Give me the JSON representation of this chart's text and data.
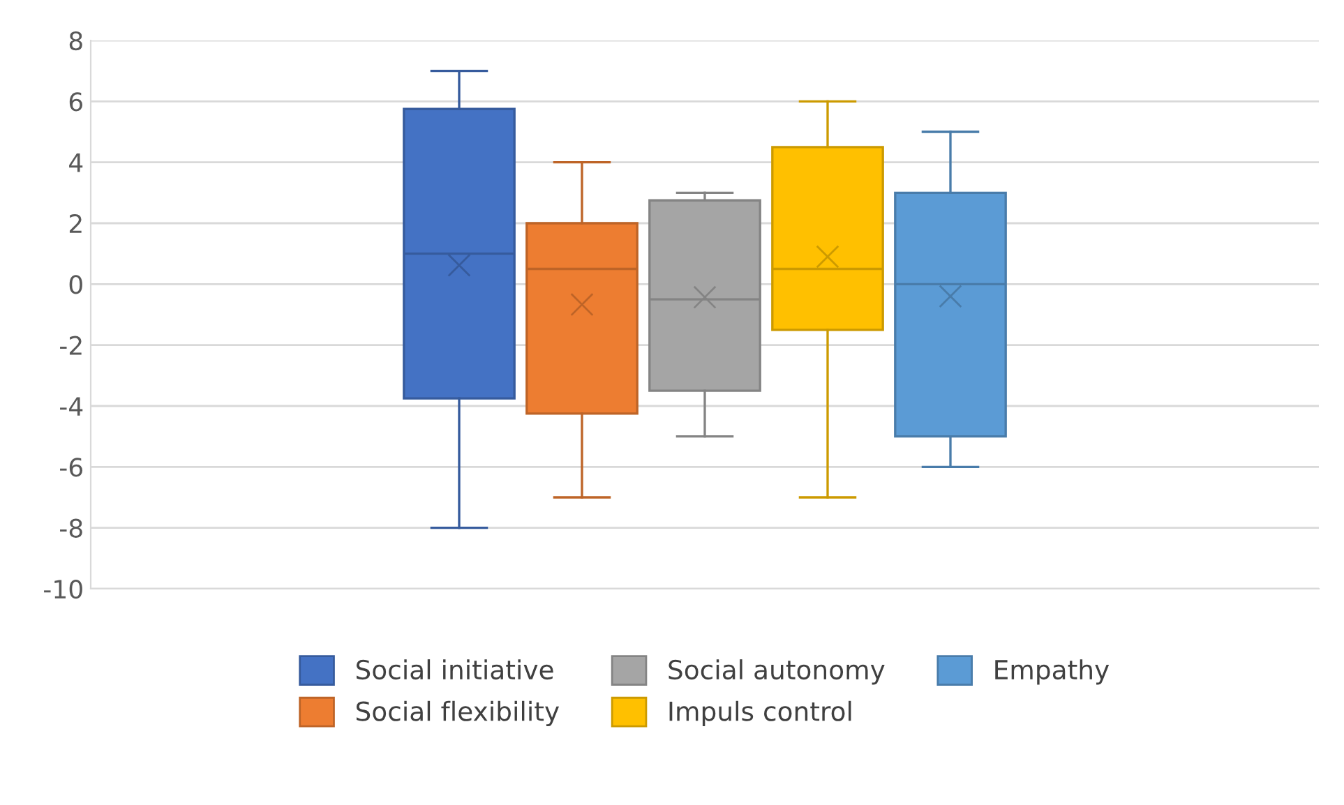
{
  "chart_data": {
    "type": "box",
    "categories": [
      null
    ],
    "series": [
      {
        "name": "Social initiative",
        "color": "#4472c4",
        "boxes": [
          {
            "low": -8,
            "q1": -3.75,
            "median": 1,
            "q3": 5.75,
            "high": 7,
            "mean": 0.62
          }
        ]
      },
      {
        "name": "Social flexibility",
        "color": "#ed7d31",
        "boxes": [
          {
            "low": -7,
            "q1": -4.25,
            "median": 0.5,
            "q3": 2,
            "high": 4,
            "mean": -0.67
          }
        ]
      },
      {
        "name": "Social autonomy",
        "color": "#a5a5a5",
        "boxes": [
          {
            "low": -5,
            "q1": -3.5,
            "median": -0.5,
            "q3": 2.75,
            "high": 3,
            "mean": -0.43
          }
        ]
      },
      {
        "name": "Impuls control",
        "color": "#ffc000",
        "boxes": [
          {
            "low": -7,
            "q1": -1.5,
            "median": 0.5,
            "q3": 4.5,
            "high": 6,
            "mean": 0.9
          }
        ]
      },
      {
        "name": "Empathy",
        "color": "#5b9bd5",
        "boxes": [
          {
            "low": -6,
            "q1": -5,
            "median": 0,
            "q3": 3,
            "high": 5,
            "mean": -0.4
          }
        ]
      }
    ],
    "ylim": [
      -10,
      8
    ],
    "yticks": [
      -10,
      -8,
      -6,
      -4,
      -2,
      0,
      2,
      4,
      6,
      8
    ],
    "grid": "y",
    "legend": "bottom",
    "tick_labels": "y",
    "marker": "cross"
  }
}
